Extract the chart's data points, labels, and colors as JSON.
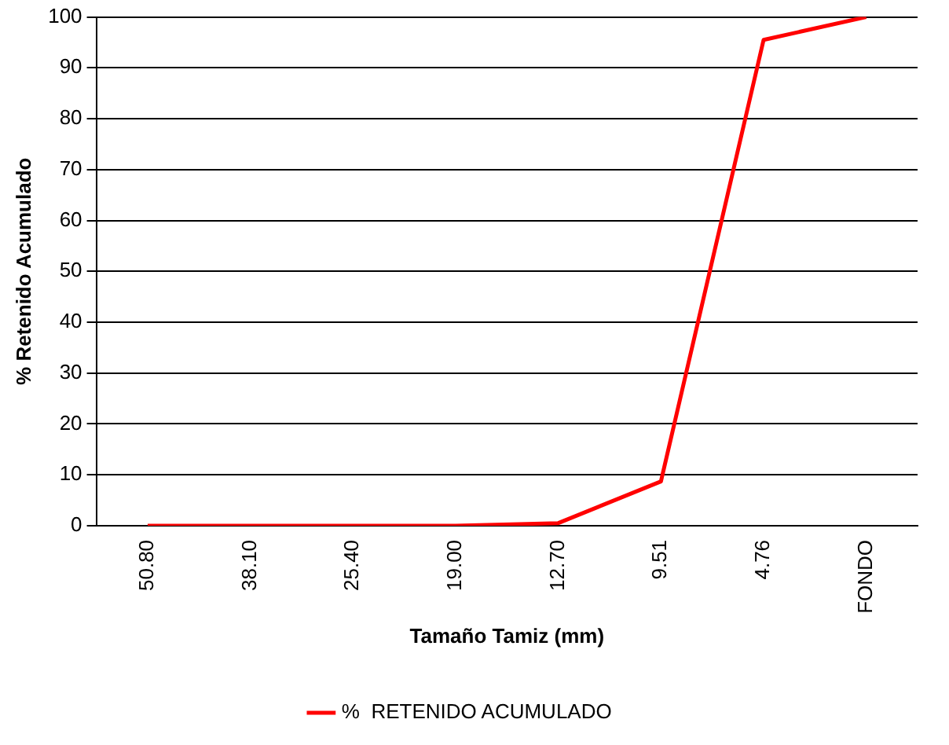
{
  "chart_data": {
    "type": "line",
    "xlabel": "Tamaño Tamiz (mm)",
    "ylabel": "% Retenido Acumulado",
    "categories": [
      "50.80",
      "38.10",
      "25.40",
      "19.00",
      "12.70",
      "9.51",
      "4.76",
      "FONDO"
    ],
    "series": [
      {
        "name": "%  RETENIDO ACUMULADO",
        "color": "#ff0000",
        "values": [
          0,
          0,
          0,
          0,
          0.5,
          8.7,
          95.5,
          100
        ]
      }
    ],
    "ylim": [
      0,
      100
    ],
    "yticks": [
      0,
      10,
      20,
      30,
      40,
      50,
      60,
      70,
      80,
      90,
      100
    ],
    "grid": "y",
    "legend": "bottom",
    "marker": "none",
    "line_style": "solid"
  }
}
